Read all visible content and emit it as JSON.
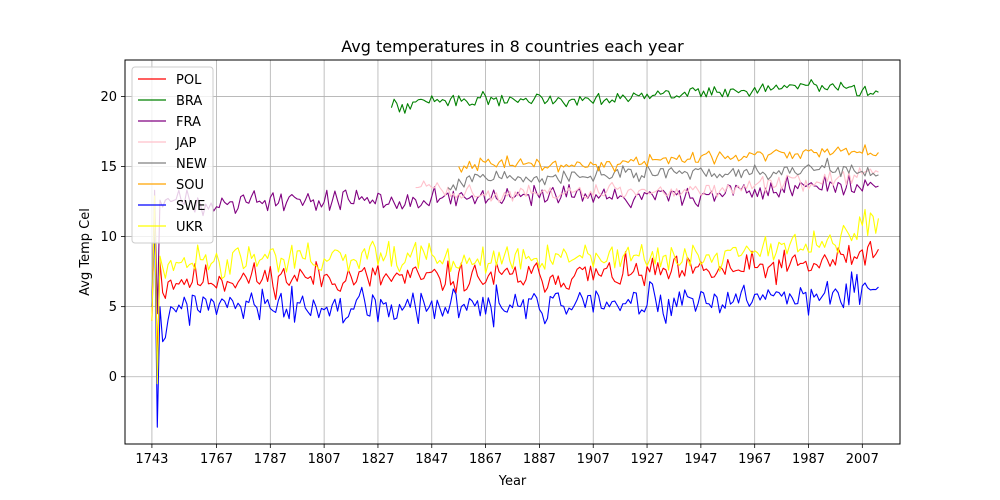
{
  "chart_data": {
    "type": "line",
    "title": "Avg temperatures in 8 countries each year",
    "xlabel": "Year",
    "ylabel": "Avg Temp Cel",
    "xlim": [
      1733,
      2021
    ],
    "ylim": [
      -4.8,
      22.6
    ],
    "x_ticks": [
      1743,
      1767,
      1787,
      1807,
      1827,
      1847,
      1867,
      1887,
      1907,
      1927,
      1947,
      1967,
      1987,
      2007
    ],
    "y_ticks": [
      0,
      5,
      10,
      15,
      20
    ],
    "grid": true,
    "legend_position": "upper-left",
    "series": [
      {
        "name": "POL",
        "color": "#ff0000",
        "start": 1743,
        "seed": 11,
        "anchors": [
          [
            1743,
            4.0
          ],
          [
            1744,
            11.8
          ],
          [
            1745,
            1.0
          ],
          [
            1746,
            8.2
          ],
          [
            1747,
            6.0
          ],
          [
            1750,
            6.9
          ],
          [
            1800,
            7.1
          ],
          [
            1850,
            7.0
          ],
          [
            1900,
            7.2
          ],
          [
            1950,
            7.5
          ],
          [
            1990,
            8.0
          ],
          [
            2013,
            9.1
          ]
        ],
        "noise": 0.75
      },
      {
        "name": "BRA",
        "color": "#008000",
        "start": 1832,
        "seed": 22,
        "anchors": [
          [
            1832,
            19.2
          ],
          [
            1833,
            19.8
          ],
          [
            1837,
            18.8
          ],
          [
            1840,
            19.6
          ],
          [
            1870,
            19.8
          ],
          [
            1900,
            19.8
          ],
          [
            1930,
            20.1
          ],
          [
            1960,
            20.4
          ],
          [
            1990,
            20.8
          ],
          [
            2013,
            20.3
          ]
        ],
        "noise": 0.3
      },
      {
        "name": "FRA",
        "color": "#800080",
        "start": 1743,
        "seed": 33,
        "anchors": [
          [
            1743,
            5.0
          ],
          [
            1744,
            13.3
          ],
          [
            1745,
            4.5
          ],
          [
            1746,
            12.6
          ],
          [
            1750,
            12.5
          ],
          [
            1800,
            12.6
          ],
          [
            1850,
            12.7
          ],
          [
            1900,
            12.8
          ],
          [
            1950,
            13.0
          ],
          [
            1990,
            13.6
          ],
          [
            2013,
            13.6
          ]
        ],
        "noise": 0.55
      },
      {
        "name": "JAP",
        "color": "#ffc0cb",
        "start": 1841,
        "seed": 44,
        "anchors": [
          [
            1841,
            13.5
          ],
          [
            1845,
            13.6
          ],
          [
            1870,
            12.8
          ],
          [
            1900,
            13.2
          ],
          [
            1930,
            13.2
          ],
          [
            1960,
            13.5
          ],
          [
            1990,
            13.9
          ],
          [
            2013,
            14.6
          ]
        ],
        "noise": 0.4
      },
      {
        "name": "NEW",
        "color": "#808080",
        "start": 1853,
        "seed": 55,
        "anchors": [
          [
            1853,
            13.5
          ],
          [
            1860,
            14.2
          ],
          [
            1880,
            14.2
          ],
          [
            1910,
            14.4
          ],
          [
            1940,
            14.5
          ],
          [
            1970,
            14.6
          ],
          [
            2000,
            15.0
          ],
          [
            2013,
            14.4
          ]
        ],
        "noise": 0.35
      },
      {
        "name": "SOU",
        "color": "#ffa500",
        "start": 1857,
        "seed": 66,
        "anchors": [
          [
            1857,
            15.0
          ],
          [
            1867,
            15.3
          ],
          [
            1900,
            15.0
          ],
          [
            1930,
            15.5
          ],
          [
            1960,
            15.8
          ],
          [
            1990,
            16.0
          ],
          [
            2013,
            16.0
          ]
        ],
        "noise": 0.3
      },
      {
        "name": "SWE",
        "color": "#0000ff",
        "start": 1743,
        "seed": 77,
        "anchors": [
          [
            1743,
            5.0
          ],
          [
            1744,
            11.4
          ],
          [
            1745,
            -3.6
          ],
          [
            1746,
            5.0
          ],
          [
            1747,
            2.5
          ],
          [
            1750,
            5.0
          ],
          [
            1800,
            4.9
          ],
          [
            1850,
            4.9
          ],
          [
            1900,
            5.1
          ],
          [
            1950,
            5.2
          ],
          [
            1990,
            5.9
          ],
          [
            2013,
            6.4
          ]
        ],
        "noise": 0.85
      },
      {
        "name": "UKR",
        "color": "#ffff00",
        "start": 1743,
        "seed": 88,
        "anchors": [
          [
            1743,
            4.0
          ],
          [
            1744,
            12.9
          ],
          [
            1745,
            -0.5
          ],
          [
            1746,
            8.6
          ],
          [
            1747,
            7.8
          ],
          [
            1750,
            8.3
          ],
          [
            1800,
            8.4
          ],
          [
            1850,
            8.3
          ],
          [
            1900,
            8.4
          ],
          [
            1950,
            8.7
          ],
          [
            1990,
            9.4
          ],
          [
            2013,
            11.3
          ]
        ],
        "noise": 0.7
      }
    ]
  }
}
